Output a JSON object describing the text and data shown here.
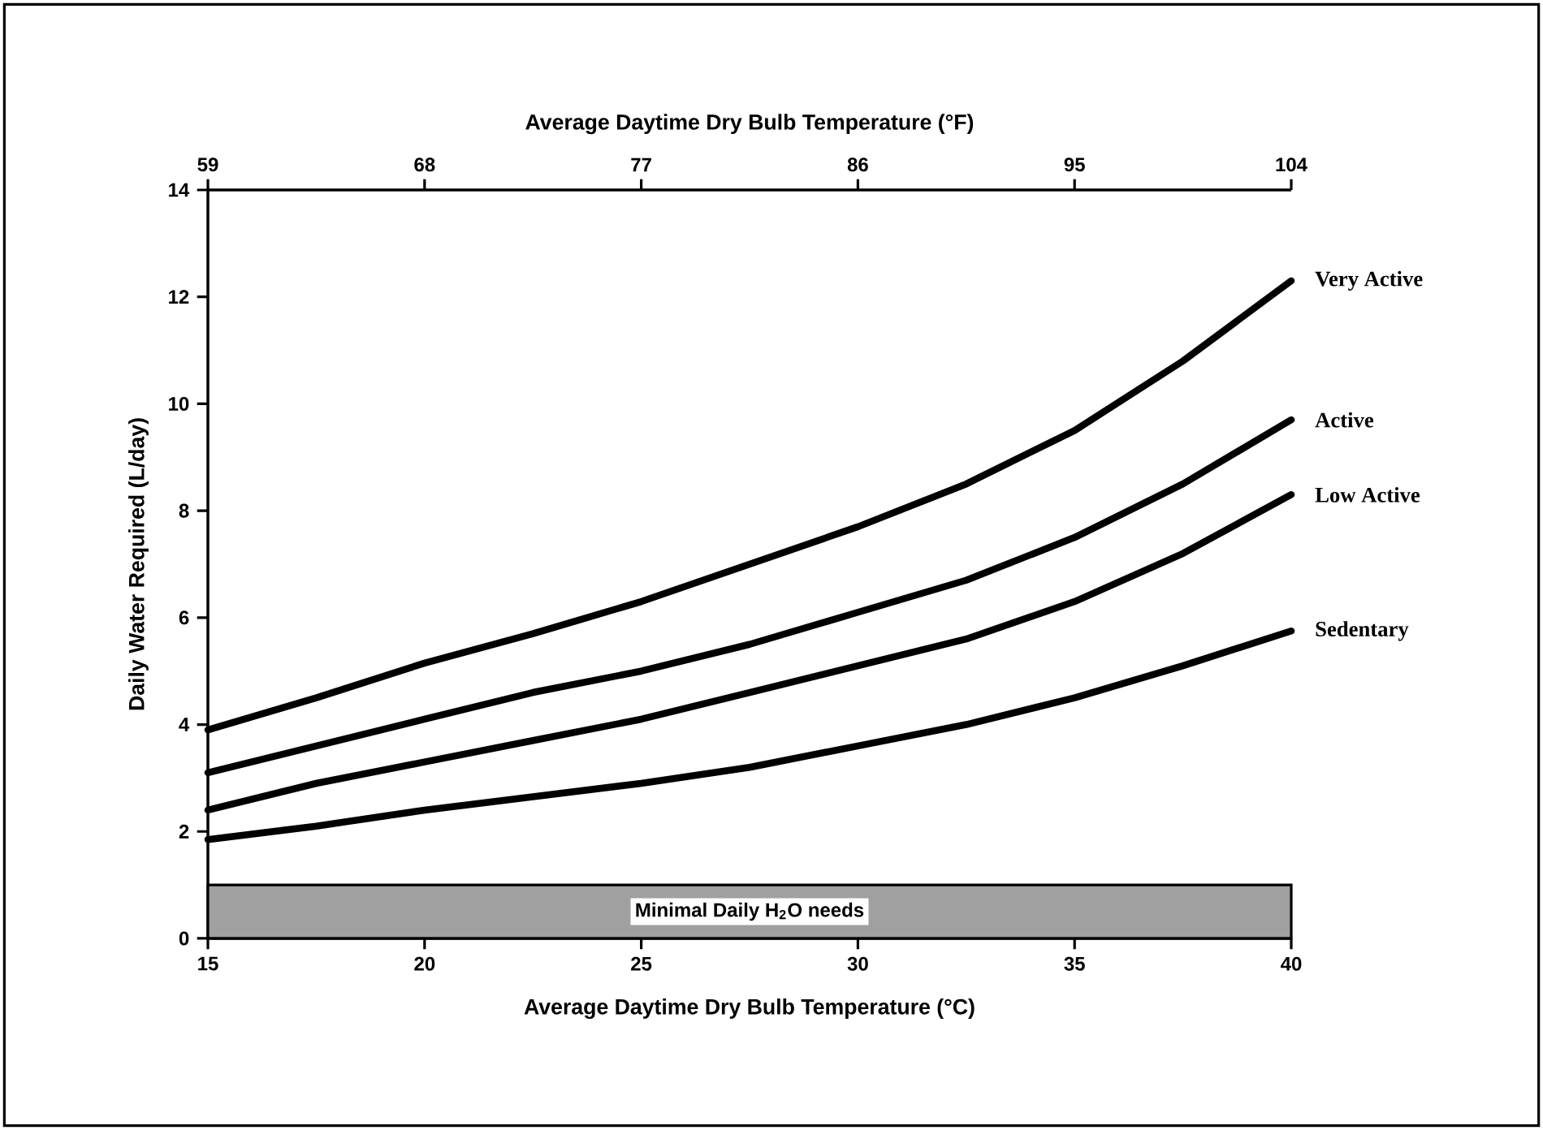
{
  "chart_data": {
    "type": "line",
    "xlabel": "Average Daytime Dry Bulb Temperature (°C)",
    "ylabel": "Daily Water Required (L/day)",
    "x2label": "Average Daytime Dry Bulb Temperature (°F)",
    "x": [
      15,
      17.5,
      20,
      22.5,
      25,
      27.5,
      30,
      32.5,
      35,
      37.5,
      40
    ],
    "series": [
      {
        "name": "Very Active",
        "color": "#000000",
        "values": [
          3.9,
          4.5,
          5.15,
          5.7,
          6.3,
          7.0,
          7.7,
          8.5,
          9.5,
          10.8,
          12.3
        ]
      },
      {
        "name": "Active",
        "color": "#000000",
        "values": [
          3.1,
          3.6,
          4.1,
          4.6,
          5.0,
          5.5,
          6.1,
          6.7,
          7.5,
          8.5,
          9.7
        ]
      },
      {
        "name": "Low Active",
        "color": "#000000",
        "values": [
          2.4,
          2.9,
          3.3,
          3.7,
          4.1,
          4.6,
          5.1,
          5.6,
          6.3,
          7.2,
          8.3
        ]
      },
      {
        "name": "Sedentary",
        "color": "#000000",
        "values": [
          1.85,
          2.1,
          2.4,
          2.65,
          2.9,
          3.2,
          3.6,
          4.0,
          4.5,
          5.1,
          5.75
        ]
      }
    ],
    "xlim": [
      15,
      40
    ],
    "xticks": [
      15,
      20,
      25,
      30,
      35,
      40
    ],
    "ylim": [
      0,
      14
    ],
    "yticks": [
      0,
      2,
      4,
      6,
      8,
      10,
      12,
      14
    ],
    "x2lim": [
      59,
      104
    ],
    "x2ticks": [
      59,
      68,
      77,
      86,
      95,
      104
    ],
    "bands": [
      {
        "axis": "y",
        "from": 0,
        "to": 1,
        "label": "Minimal Daily H$_{2}$O needs",
        "color": "#a0a0a0"
      }
    ],
    "marker": "none",
    "line_style": "solid"
  }
}
